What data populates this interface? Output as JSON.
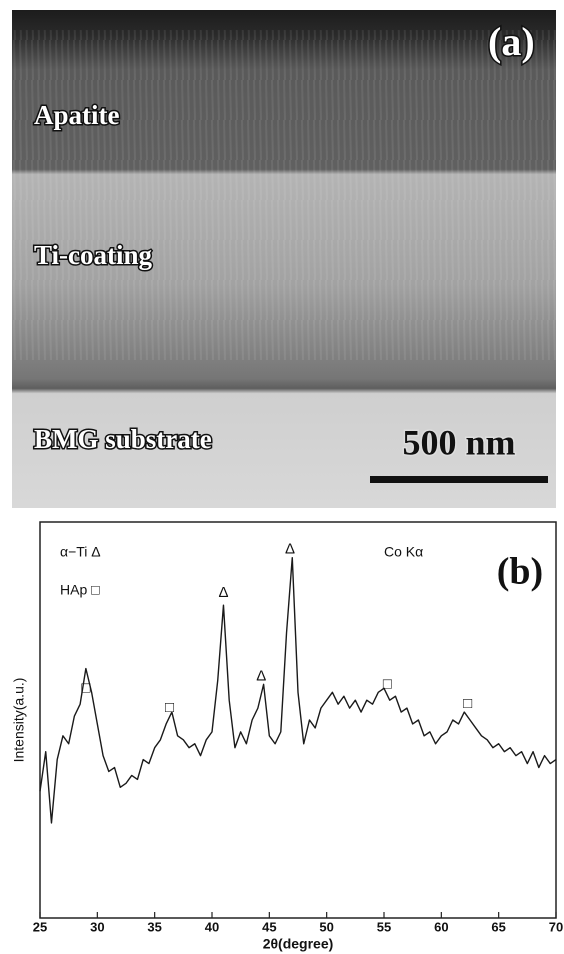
{
  "panel_a": {
    "panel_label": "(a)",
    "layers": [
      "Apatite",
      "Ti-coating",
      "BMG substrate"
    ],
    "scale_bar": "500 nm"
  },
  "chart_data": {
    "type": "line",
    "panel_label": "(b)",
    "xlabel": "2θ(degree)",
    "ylabel": "Intensity(a.u.)",
    "notes": [
      "α−Ti Δ",
      "HAp □",
      "Co Kα"
    ],
    "xlim": [
      25,
      70
    ],
    "xticks": [
      25,
      30,
      35,
      40,
      45,
      50,
      55,
      60,
      65,
      70
    ],
    "ylim": [
      0,
      100
    ],
    "color": "#1a1a1a",
    "x": [
      25,
      25.5,
      26,
      26.5,
      27,
      27.5,
      28,
      28.5,
      29,
      29.5,
      30,
      30.5,
      31,
      31.5,
      32,
      32.5,
      33,
      33.5,
      34,
      34.5,
      35,
      35.5,
      36,
      36.5,
      37,
      37.5,
      38,
      38.5,
      39,
      39.5,
      40,
      40.5,
      41,
      41.5,
      42,
      42.5,
      43,
      43.5,
      44,
      44.5,
      45,
      45.5,
      46,
      46.5,
      47,
      47.5,
      48,
      48.5,
      49,
      49.5,
      50,
      50.5,
      51,
      51.5,
      52,
      52.5,
      53,
      53.5,
      54,
      54.5,
      55,
      55.5,
      56,
      56.5,
      57,
      57.5,
      58,
      58.5,
      59,
      59.5,
      60,
      60.5,
      61,
      61.5,
      62,
      62.5,
      63,
      63.5,
      64,
      64.5,
      65,
      65.5,
      66,
      66.5,
      67,
      67.5,
      68,
      68.5,
      69,
      69.5,
      70
    ],
    "values": [
      32,
      42,
      24,
      40,
      46,
      44,
      51,
      54,
      63,
      57,
      49,
      41,
      37,
      38,
      33,
      34,
      36,
      35,
      40,
      39,
      43,
      45,
      49,
      52,
      46,
      45,
      43,
      44,
      41,
      45,
      47,
      60,
      79,
      55,
      43,
      47,
      44,
      50,
      53,
      59,
      46,
      44,
      47,
      72,
      91,
      57,
      44,
      50,
      48,
      53,
      55,
      57,
      54,
      56,
      53,
      55,
      52,
      55,
      54,
      57,
      58,
      55,
      56,
      52,
      53,
      49,
      50,
      46,
      47,
      44,
      46,
      47,
      50,
      49,
      52,
      50,
      48,
      46,
      45,
      43,
      44,
      42,
      43,
      41,
      42,
      39,
      42,
      38,
      41,
      39,
      40
    ],
    "peak_markers": [
      {
        "label": "Δ",
        "x": 41,
        "y": 82
      },
      {
        "label": "Δ",
        "x": 44.3,
        "y": 61
      },
      {
        "label": "Δ",
        "x": 46.8,
        "y": 93
      },
      {
        "label": "□",
        "x": 29,
        "y": 58
      },
      {
        "label": "□",
        "x": 36.3,
        "y": 53
      },
      {
        "label": "□",
        "x": 55.3,
        "y": 59
      },
      {
        "label": "□",
        "x": 62.3,
        "y": 54
      }
    ]
  }
}
